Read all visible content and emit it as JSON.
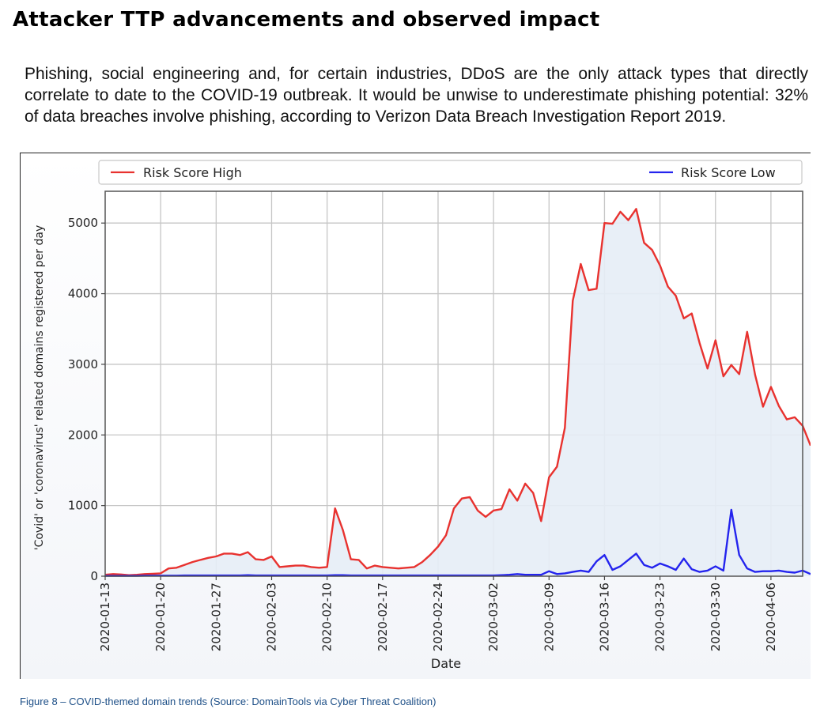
{
  "header": {
    "title": "Attacker TTP advancements and observed impact",
    "intro": "Phishing, social engineering and, for certain industries, DDoS are the only attack types that directly correlate to date to the COVID-19 outbreak. It would be unwise to underestimate phishing potential: 32% of data breaches involve phishing, according to Verizon Data Breach Investigation Report 2019."
  },
  "figure": {
    "caption": "Figure 8 – COVID-themed domain trends (Source: DomainTools via Cyber Threat Coalition)"
  },
  "chart_data": {
    "type": "line",
    "title": "",
    "xlabel": "Date",
    "ylabel": "'Covid' or 'coronavirus' related domains registered per day",
    "x_start": "2020-01-13",
    "x_ticks": [
      "2020-01-13",
      "2020-01-20",
      "2020-01-27",
      "2020-02-03",
      "2020-02-10",
      "2020-02-17",
      "2020-02-24",
      "2020-03-02",
      "2020-03-09",
      "2020-03-16",
      "2020-03-23",
      "2020-03-30",
      "2020-04-06"
    ],
    "y_ticks": [
      0,
      1000,
      2000,
      3000,
      4000,
      5000
    ],
    "xlim": [
      "2020-01-13",
      "2020-04-10"
    ],
    "ylim": [
      0,
      5450
    ],
    "grid": true,
    "legend": "top",
    "series": [
      {
        "name": "Risk Score High",
        "color": "#e8322f",
        "fill": true,
        "values": [
          20,
          30,
          25,
          15,
          20,
          30,
          35,
          40,
          110,
          120,
          160,
          200,
          230,
          260,
          280,
          320,
          320,
          300,
          340,
          240,
          230,
          280,
          130,
          140,
          150,
          150,
          130,
          120,
          130,
          960,
          650,
          240,
          230,
          110,
          150,
          130,
          120,
          110,
          120,
          130,
          200,
          300,
          420,
          580,
          960,
          1100,
          1120,
          930,
          840,
          930,
          950,
          1230,
          1070,
          1310,
          1180,
          780,
          1400,
          1550,
          2100,
          3900,
          4420,
          4050,
          4070,
          5000,
          4990,
          5160,
          5040,
          5200,
          4720,
          4620,
          4400,
          4100,
          3970,
          3650,
          3720,
          3300,
          2940,
          3340,
          2830,
          2990,
          2860,
          3460,
          2850,
          2400,
          2680,
          2410,
          2220,
          2250,
          2130,
          1850
        ]
      },
      {
        "name": "Risk Score Low",
        "color": "#2424ee",
        "fill": false,
        "values": [
          5,
          5,
          5,
          5,
          5,
          8,
          8,
          8,
          8,
          8,
          10,
          10,
          10,
          10,
          10,
          10,
          10,
          10,
          15,
          10,
          10,
          10,
          10,
          10,
          10,
          10,
          10,
          10,
          10,
          15,
          15,
          10,
          10,
          10,
          10,
          10,
          10,
          10,
          10,
          10,
          10,
          10,
          10,
          10,
          10,
          10,
          10,
          10,
          10,
          10,
          15,
          20,
          30,
          20,
          20,
          20,
          70,
          30,
          40,
          60,
          80,
          60,
          210,
          300,
          90,
          140,
          230,
          320,
          160,
          120,
          180,
          140,
          90,
          250,
          100,
          60,
          80,
          140,
          80,
          940,
          300,
          110,
          60,
          70,
          70,
          80,
          60,
          50,
          80,
          30
        ]
      }
    ]
  }
}
